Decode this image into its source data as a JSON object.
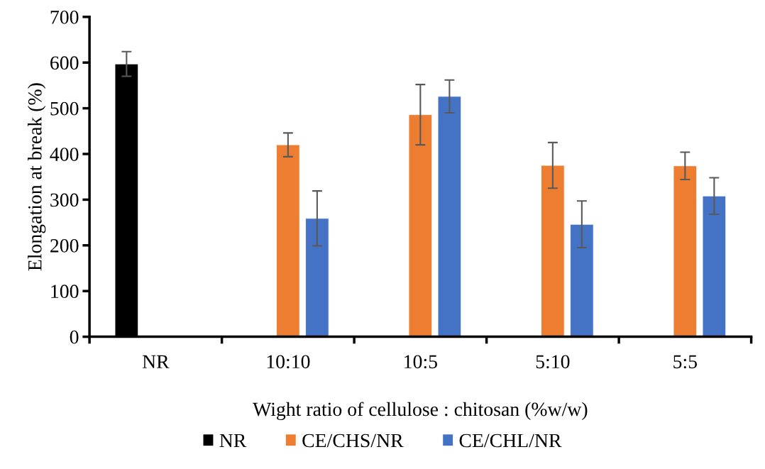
{
  "chart_data": {
    "type": "bar",
    "xlabel": "Wight ratio of cellulose : chitosan (%w/w)",
    "ylabel": "Elongation at break (%)",
    "categories": [
      "NR",
      "10:10",
      "10:5",
      "5:10",
      "5:5"
    ],
    "series": [
      {
        "name": "NR",
        "color": "#000000",
        "values": [
          597,
          null,
          null,
          null,
          null
        ],
        "errors": [
          27,
          null,
          null,
          null,
          null
        ]
      },
      {
        "name": "CE/CHS/NR",
        "color": "#ed7d31",
        "values": [
          null,
          420,
          486,
          375,
          374
        ],
        "errors": [
          null,
          26,
          66,
          50,
          30
        ]
      },
      {
        "name": "CE/CHL/NR",
        "color": "#4472c4",
        "values": [
          null,
          259,
          526,
          246,
          308
        ],
        "errors": [
          null,
          60,
          36,
          51,
          40
        ]
      }
    ],
    "ylim": [
      0,
      700
    ],
    "yticks": [
      0,
      100,
      200,
      300,
      400,
      500,
      600,
      700
    ],
    "grid": false,
    "legend": "bottom"
  }
}
